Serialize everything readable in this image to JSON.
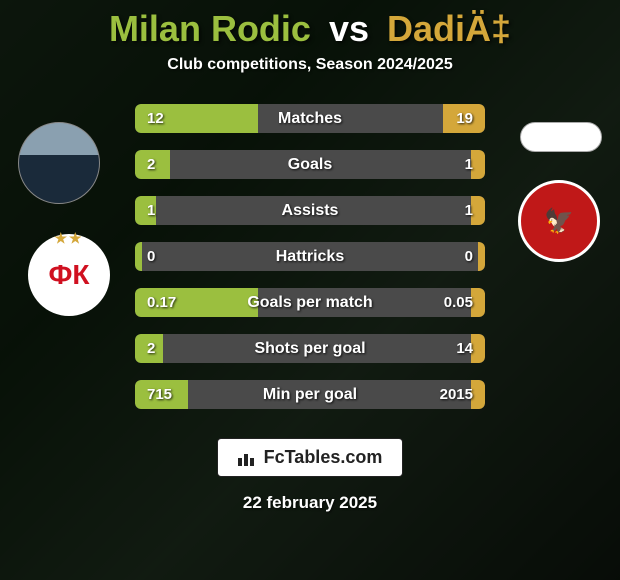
{
  "header": {
    "player1_name": "Milan Rodic",
    "vs_text": "vs",
    "player2_name": "DadiÄ‡",
    "subtitle": "Club competitions, Season 2024/2025",
    "player1_color": "#9bbf3f",
    "player2_color": "#d4a73a"
  },
  "clubs": {
    "p1_initials": "ФК",
    "p1_bg": "#ffffff",
    "p1_color": "#d01020",
    "p1_star_color": "#d4a73a",
    "p2_bg": "#c01818",
    "p2_border": "#ffffff",
    "p2_icon": "🦅",
    "p2_icon_color": "#ffffff"
  },
  "stats": {
    "bar_bg": "#4a4a4a",
    "fill_left_color": "#9bbf3f",
    "fill_right_color": "#d4a73a",
    "rows": [
      {
        "label": "Matches",
        "left_val": "12",
        "right_val": "19",
        "left_pct": 35,
        "right_pct": 12
      },
      {
        "label": "Goals",
        "left_val": "2",
        "right_val": "1",
        "left_pct": 10,
        "right_pct": 4
      },
      {
        "label": "Assists",
        "left_val": "1",
        "right_val": "1",
        "left_pct": 6,
        "right_pct": 4
      },
      {
        "label": "Hattricks",
        "left_val": "0",
        "right_val": "0",
        "left_pct": 2,
        "right_pct": 2
      },
      {
        "label": "Goals per match",
        "left_val": "0.17",
        "right_val": "0.05",
        "left_pct": 35,
        "right_pct": 4
      },
      {
        "label": "Shots per goal",
        "left_val": "2",
        "right_val": "14",
        "left_pct": 8,
        "right_pct": 4
      },
      {
        "label": "Min per goal",
        "left_val": "715",
        "right_val": "2015",
        "left_pct": 15,
        "right_pct": 4
      }
    ]
  },
  "watermark": {
    "text": "FcTables.com"
  },
  "date": {
    "text": "22 february 2025"
  },
  "background": {
    "gradient": "linear-gradient(135deg, #2a4a2a 0%, #1a3a1a 30%, #3a5a3a 60%, #1a2a1a 100%)"
  }
}
